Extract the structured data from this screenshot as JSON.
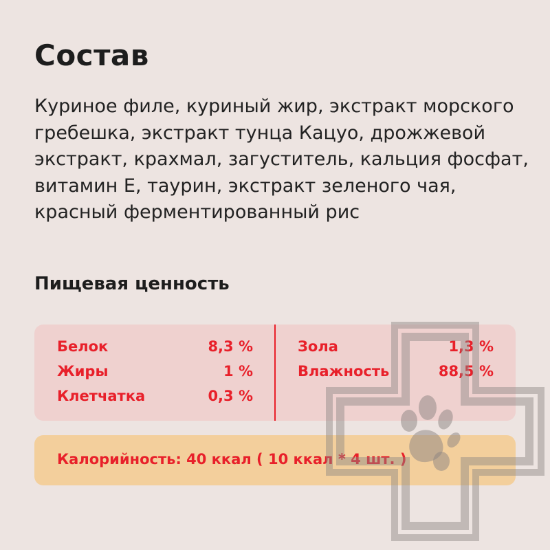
{
  "title": "Состав",
  "composition": "Куриное филе, куриный жир, экстракт морского гребешка, экстракт тунца Кацуо, дрожжевой экстракт, крахмал, загуститель, кальция фосфат, витамин Е, таурин, экстракт зеленого чая, красный ферментированный рис",
  "nutrition": {
    "heading": "Пищевая ценность",
    "left": [
      {
        "label": "Белок",
        "value": "8,3 %"
      },
      {
        "label": "Жиры",
        "value": "1 %"
      },
      {
        "label": "Клетчатка",
        "value": "0,3 %"
      }
    ],
    "right": [
      {
        "label": "Зола",
        "value": "1,3 %"
      },
      {
        "label": "Влажность",
        "value": "88,5 %"
      }
    ]
  },
  "calories": "Калорийность: 40 ккал ( 10 ккал * 4 шт. )",
  "colors": {
    "accent": "#e8202a",
    "background": "#ede4e1",
    "table_bg": "#efd1cf",
    "calorie_bg": "#f3cf9c"
  },
  "watermark_icon": "vet-cross-paw-icon"
}
